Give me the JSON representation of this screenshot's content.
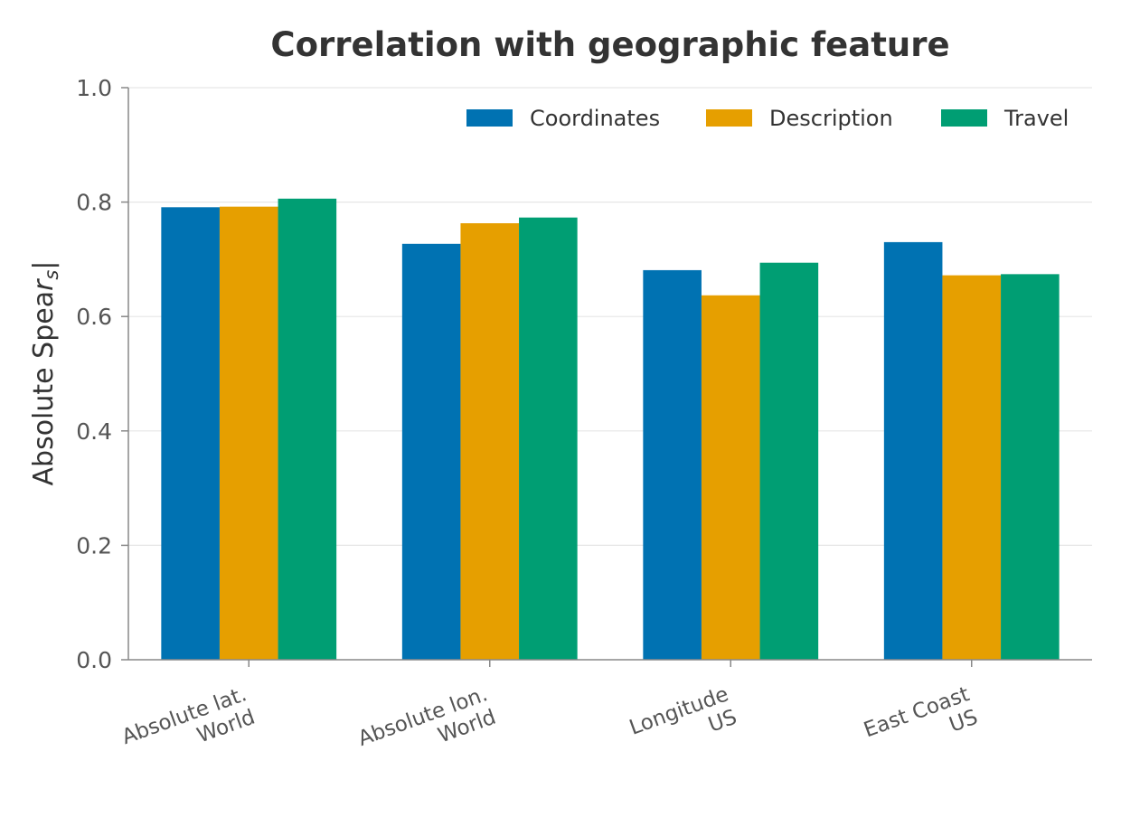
{
  "chart_data": {
    "type": "bar",
    "title": "Correlation with geographic feature",
    "ylabel": "Absolute Spearman |r",
    "ylabel_subscript": "s",
    "ylabel_suffix": "|",
    "xlabel": "",
    "ylim": [
      0.0,
      1.0
    ],
    "yticks": [
      "0.0",
      "0.2",
      "0.4",
      "0.6",
      "0.8",
      "1.0"
    ],
    "grid": "horizontal",
    "legend_position": "top-right",
    "categories": [
      [
        "Absolute lat.",
        "World"
      ],
      [
        "Absolute lon.",
        "World"
      ],
      [
        "Longitude",
        "US"
      ],
      [
        "East Coast",
        "US"
      ]
    ],
    "series": [
      {
        "name": "Coordinates",
        "color": "#0072B2",
        "values": [
          0.791,
          0.727,
          0.681,
          0.73
        ]
      },
      {
        "name": "Description",
        "color": "#E69F00",
        "values": [
          0.792,
          0.763,
          0.637,
          0.672
        ]
      },
      {
        "name": "Travel",
        "color": "#009E73",
        "values": [
          0.806,
          0.773,
          0.694,
          0.674
        ]
      }
    ]
  }
}
